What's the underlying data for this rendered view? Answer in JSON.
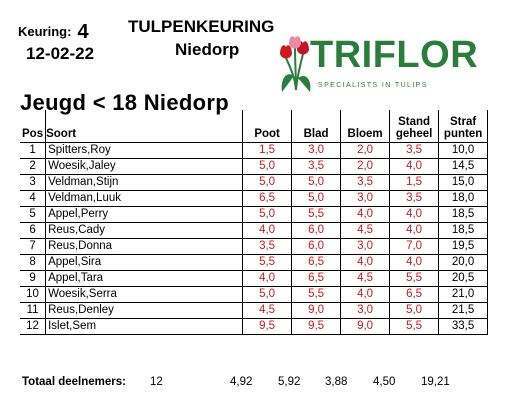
{
  "header": {
    "keuring_label": "Keuring:",
    "keuring_number": "4",
    "date": "12-02-22",
    "title": "TULPENKEURING",
    "place": "Niedorp"
  },
  "logo": {
    "name": "TRIFLOR",
    "tagline": "SPECIALISTS IN TULIPS",
    "color": "#2a7d3b",
    "tulip_colors": [
      "#d01a1a",
      "#e88aa0",
      "#c0152a"
    ]
  },
  "section_title": "Jeugd < 18 Niedorp",
  "table": {
    "columns": [
      "Pos",
      "Soort",
      "Poot",
      "Blad",
      "Bloem",
      "Stand geheel",
      "Straf punten"
    ],
    "rows": [
      {
        "pos": "1",
        "soort": "Spitters,Roy",
        "poot": "1,5",
        "blad": "3,0",
        "bloem": "2,0",
        "stand": "3,5",
        "straf": "10,0"
      },
      {
        "pos": "2",
        "soort": "Woesik,Jaley",
        "poot": "5,0",
        "blad": "3,5",
        "bloem": "2,0",
        "stand": "4,0",
        "straf": "14,5"
      },
      {
        "pos": "3",
        "soort": "Veldman,Stijn",
        "poot": "5,0",
        "blad": "5,0",
        "bloem": "3,5",
        "stand": "1,5",
        "straf": "15,0"
      },
      {
        "pos": "4",
        "soort": "Veldman,Luuk",
        "poot": "6,5",
        "blad": "5,0",
        "bloem": "3,0",
        "stand": "3,5",
        "straf": "18,0"
      },
      {
        "pos": "5",
        "soort": "Appel,Perry",
        "poot": "5,0",
        "blad": "5,5",
        "bloem": "4,0",
        "stand": "4,0",
        "straf": "18,5"
      },
      {
        "pos": "6",
        "soort": "Reus,Cady",
        "poot": "4,0",
        "blad": "6,0",
        "bloem": "4,5",
        "stand": "4,0",
        "straf": "18,5"
      },
      {
        "pos": "7",
        "soort": "Reus,Donna",
        "poot": "3,5",
        "blad": "6,0",
        "bloem": "3,0",
        "stand": "7,0",
        "straf": "19,5"
      },
      {
        "pos": "8",
        "soort": "Appel,Sira",
        "poot": "5,5",
        "blad": "6,5",
        "bloem": "4,0",
        "stand": "4,0",
        "straf": "20,0"
      },
      {
        "pos": "9",
        "soort": "Appel,Tara",
        "poot": "4,0",
        "blad": "6,5",
        "bloem": "4,5",
        "stand": "5,5",
        "straf": "20,5"
      },
      {
        "pos": "10",
        "soort": "Woesik,Serra",
        "poot": "5,0",
        "blad": "5,5",
        "bloem": "4,0",
        "stand": "6,5",
        "straf": "21,0"
      },
      {
        "pos": "11",
        "soort": "Reus,Denley",
        "poot": "4,5",
        "blad": "9,0",
        "bloem": "3,0",
        "stand": "5,0",
        "straf": "21,5"
      },
      {
        "pos": "12",
        "soort": "Islet,Sem",
        "poot": "9,5",
        "blad": "9,5",
        "bloem": "9,0",
        "stand": "5,5",
        "straf": "33,5"
      }
    ]
  },
  "totals": {
    "label": "Totaal deelnemers:",
    "count": "12",
    "poot": "4,92",
    "blad": "5,92",
    "bloem": "3,88",
    "stand": "4,50",
    "straf": "19,21"
  },
  "colors": {
    "score_red": "#d01a1a"
  }
}
